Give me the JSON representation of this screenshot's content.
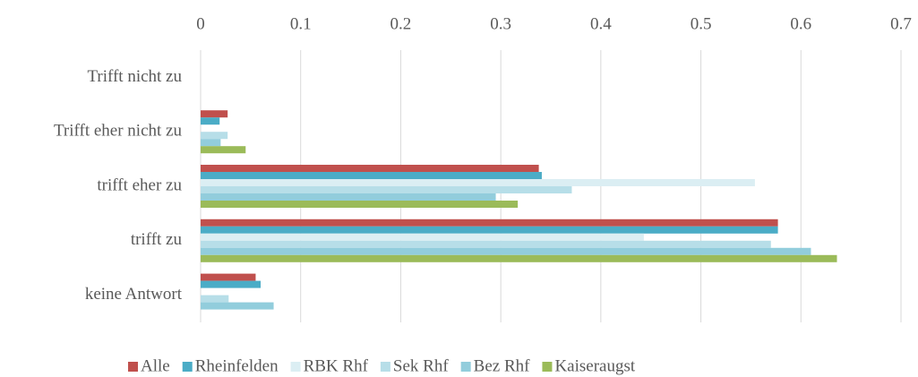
{
  "chart_data": {
    "type": "hbar",
    "categories": [
      "Trifft nicht zu",
      "Trifft eher nicht zu",
      "trifft eher zu",
      "trifft zu",
      "keine Antwort"
    ],
    "series": [
      {
        "name": "Alle",
        "color": "#c0504d",
        "values": [
          0,
          0.027,
          0.338,
          0.577,
          0.055
        ]
      },
      {
        "name": "Rheinfelden",
        "color": "#4bacc6",
        "values": [
          0,
          0.019,
          0.341,
          0.577,
          0.06
        ]
      },
      {
        "name": "RBK Rhf",
        "color": "#dbeef3",
        "values": [
          0,
          0,
          0.554,
          0.443,
          0
        ]
      },
      {
        "name": "Sek Rhf",
        "color": "#b7dee8",
        "values": [
          0,
          0.027,
          0.371,
          0.57,
          0.028
        ]
      },
      {
        "name": "Bez Rhf",
        "color": "#92cddc",
        "values": [
          0,
          0.02,
          0.295,
          0.61,
          0.073
        ]
      },
      {
        "name": "Kaiseraugst",
        "color": "#9bbb59",
        "values": [
          0,
          0.045,
          0.317,
          0.636,
          0
        ]
      }
    ],
    "xlim": [
      0,
      0.7
    ],
    "xticks": [
      0,
      0.1,
      0.2,
      0.3,
      0.4,
      0.5,
      0.6,
      0.7
    ],
    "grid": true,
    "legend": "bottom"
  }
}
